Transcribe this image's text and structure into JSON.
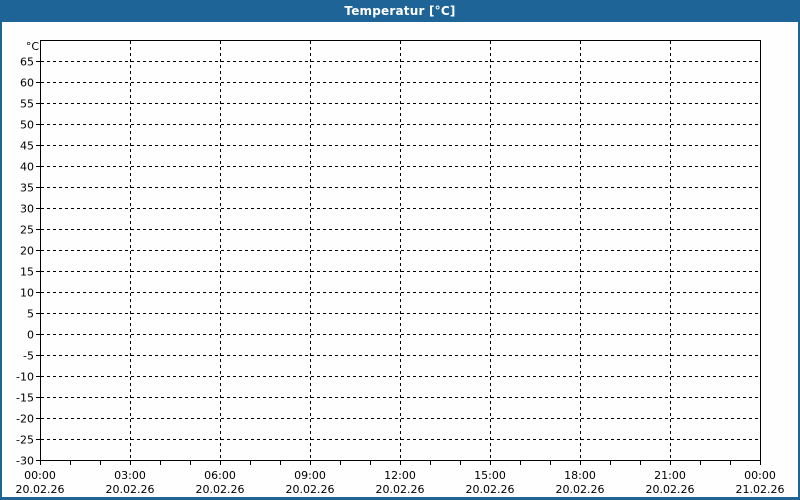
{
  "window": {
    "title": "Temperatur [°C]"
  },
  "colors": {
    "frame": "#1e6496",
    "titlebar_bg": "#1e6496",
    "titlebar_text": "#ffffff",
    "plot_bg": "#fdfefd",
    "grid": "#000000",
    "axis": "#000000",
    "text": "#000000"
  },
  "chart_data": {
    "type": "line",
    "title": "Temperatur [°C]",
    "ylabel": "°C",
    "xlabel": "",
    "grid": true,
    "grid_style": "dashed",
    "legend": "none",
    "ylim": [
      -30,
      70
    ],
    "y_tick_step": 5,
    "y_ticks": [
      65,
      60,
      55,
      50,
      45,
      40,
      35,
      30,
      25,
      20,
      15,
      10,
      5,
      0,
      -5,
      -10,
      -15,
      -20,
      -25,
      -30
    ],
    "x_hours_total": 24,
    "major_tick_hours": 3,
    "minor_tick_hours": 1,
    "x_ticks": [
      {
        "time": "00:00",
        "date": "20.02.26"
      },
      {
        "time": "03:00",
        "date": "20.02.26"
      },
      {
        "time": "06:00",
        "date": "20.02.26"
      },
      {
        "time": "09:00",
        "date": "20.02.26"
      },
      {
        "time": "12:00",
        "date": "20.02.26"
      },
      {
        "time": "15:00",
        "date": "20.02.26"
      },
      {
        "time": "18:00",
        "date": "20.02.26"
      },
      {
        "time": "21:00",
        "date": "20.02.26"
      },
      {
        "time": "00:00",
        "date": "21.02.26"
      }
    ],
    "series": []
  }
}
